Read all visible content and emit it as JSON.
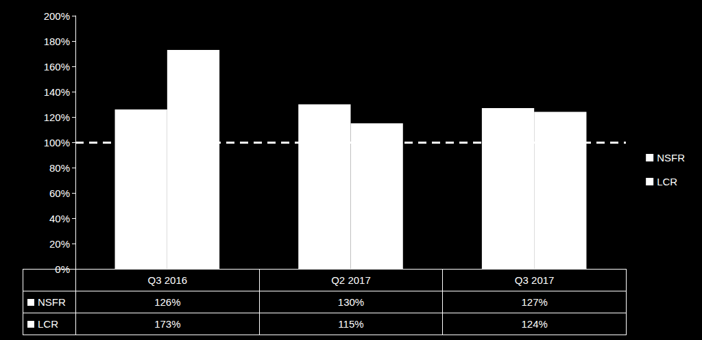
{
  "chart_data": {
    "type": "bar",
    "categories": [
      "Q3 2016",
      "Q2 2017",
      "Q3 2017"
    ],
    "series": [
      {
        "name": "NSFR",
        "color": "#ffffff",
        "values": [
          126,
          130,
          127
        ],
        "value_labels": [
          "126%",
          "130%",
          "127%"
        ]
      },
      {
        "name": "LCR",
        "color": "#ffffff",
        "values": [
          173,
          115,
          124
        ],
        "value_labels": [
          "173%",
          "115%",
          "124%"
        ]
      }
    ],
    "ylim": [
      0,
      200
    ],
    "yticks": [
      {
        "value": 0,
        "label": "0%"
      },
      {
        "value": 20,
        "label": "20%"
      },
      {
        "value": 40,
        "label": "40%"
      },
      {
        "value": 60,
        "label": "60%"
      },
      {
        "value": 80,
        "label": "80%"
      },
      {
        "value": 100,
        "label": "100%"
      },
      {
        "value": 120,
        "label": "120%"
      },
      {
        "value": 140,
        "label": "140%"
      },
      {
        "value": 160,
        "label": "160%"
      },
      {
        "value": 180,
        "label": "180%"
      },
      {
        "value": 200,
        "label": "200%"
      }
    ],
    "grid": false,
    "legend": "right",
    "reference_line": 100
  }
}
